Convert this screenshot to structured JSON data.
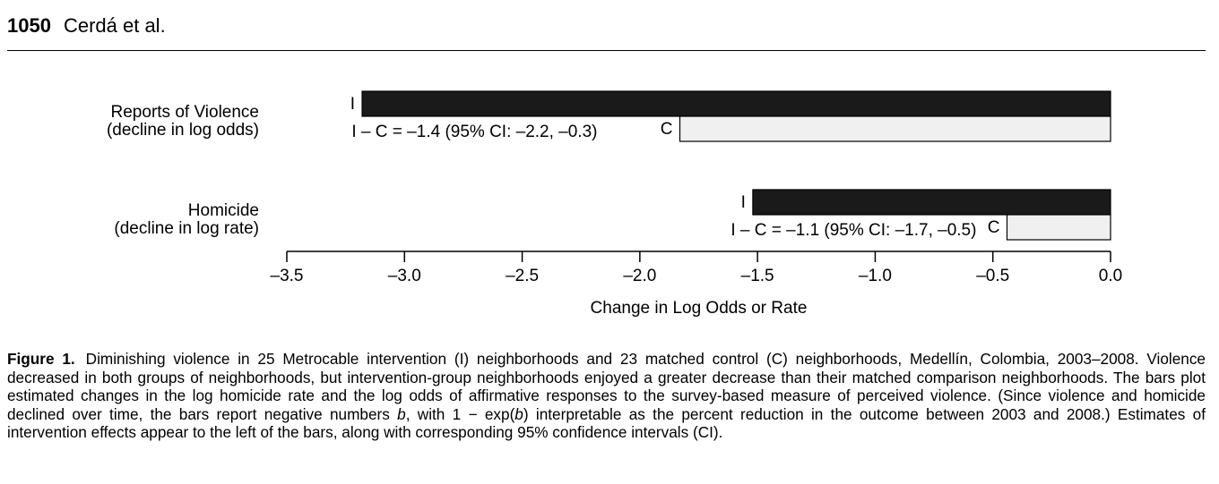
{
  "page": {
    "number": "1050",
    "authors": "Cerdá et al."
  },
  "chart_data": {
    "type": "bar",
    "orientation": "horizontal",
    "categories": [
      {
        "lines": [
          "Reports of Violence",
          "(decline in log odds)"
        ]
      },
      {
        "lines": [
          "Homicide",
          "(decline in log rate)"
        ]
      }
    ],
    "series": [
      {
        "name": "I",
        "color": "#1a1a1a",
        "values": [
          -3.18,
          -1.52
        ]
      },
      {
        "name": "C",
        "color": "#f0f0f0",
        "values": [
          -1.83,
          -0.44
        ]
      }
    ],
    "annotations": [
      "I – C = –1.4 (95% CI: –2.2, –0.3)",
      "I – C = –1.1 (95% CI: –1.7, –0.5)"
    ],
    "xlim": [
      -3.5,
      0.0
    ],
    "xticks": [
      -3.5,
      -3.0,
      -2.5,
      -2.0,
      -1.5,
      -1.0,
      -0.5,
      0.0
    ],
    "xtick_labels": [
      "–3.5",
      "–3.0",
      "–2.5",
      "–2.0",
      "–1.5",
      "–1.0",
      "–0.5",
      "0.0"
    ],
    "xlabel": "Change in Log Odds or Rate",
    "grid": false,
    "legend": "none"
  },
  "caption": {
    "label": "Figure 1.",
    "text_parts": [
      "Diminishing violence in 25 Metrocable intervention (I) neighborhoods and 23 matched control (C) neighborhoods, Medellín, Colombia, 2003–2008. Violence decreased in both groups of neighborhoods, but intervention-group neighborhoods enjoyed a greater decrease than their matched comparison neighborhoods. The bars plot estimated changes in the log homicide rate and the log odds of affirmative responses to the survey-based measure of perceived violence. (Since violence and homicide declined over time, the bars report negative numbers ",
      "b",
      ", with 1 − exp(",
      "b",
      ") interpretable as the percent reduction in the outcome between 2003 and 2008.) Estimates of intervention effects appear to the left of the bars, along with corresponding 95% confidence intervals (CI)."
    ]
  }
}
